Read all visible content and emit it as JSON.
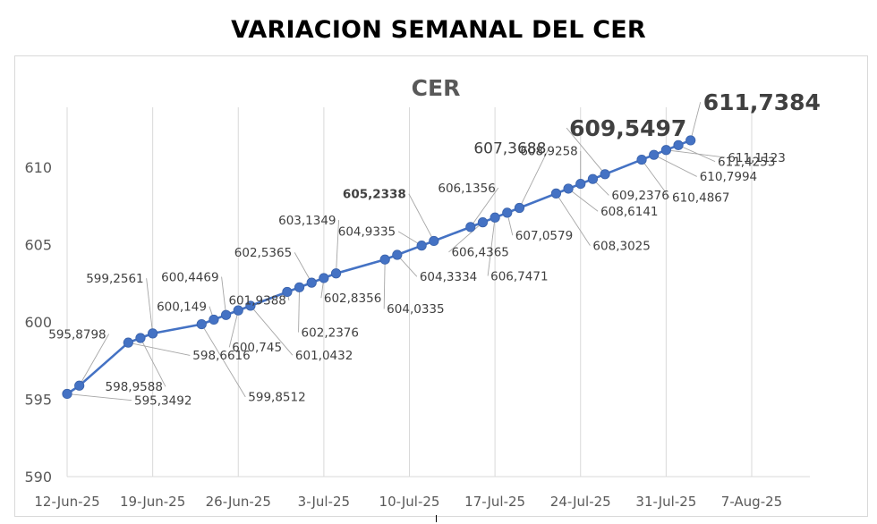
{
  "title": "VARIACION SEMANAL DEL CER",
  "chart_data": {
    "type": "line",
    "title": "CER",
    "xlabel": "",
    "ylabel": "",
    "ylim": [
      590,
      613
    ],
    "yticks": [
      590,
      595,
      600,
      605,
      610
    ],
    "xticks": [
      "12-Jun-25",
      "19-Jun-25",
      "26-Jun-25",
      "3-Jul-25",
      "10-Jul-25",
      "17-Jul-25",
      "24-Jul-25",
      "31-Jul-25",
      "7-Aug-25"
    ],
    "grid": "vertical",
    "series_color": "#4472c4",
    "points": [
      {
        "x": "12-Jun-25",
        "y": 595.3492,
        "label": "595,3492"
      },
      {
        "x": "13-Jun-25",
        "y": 595.8798,
        "label": "595,8798"
      },
      {
        "x": "17-Jun-25",
        "y": 598.6616,
        "label": "598,6616"
      },
      {
        "x": "18-Jun-25",
        "y": 598.9588,
        "label": "598,9588"
      },
      {
        "x": "19-Jun-25",
        "y": 599.2561,
        "label": "599,2561"
      },
      {
        "x": "23-Jun-25",
        "y": 599.8512,
        "label": "599,8512"
      },
      {
        "x": "24-Jun-25",
        "y": 600.149,
        "label": "600,149"
      },
      {
        "x": "25-Jun-25",
        "y": 600.4469,
        "label": "600,4469"
      },
      {
        "x": "26-Jun-25",
        "y": 600.745,
        "label": "600,745"
      },
      {
        "x": "27-Jun-25",
        "y": 601.0432,
        "label": "601,0432"
      },
      {
        "x": "30-Jun-25",
        "y": 601.9388,
        "label": "601,9388"
      },
      {
        "x": "1-Jul-25",
        "y": 602.2376,
        "label": "602,2376"
      },
      {
        "x": "2-Jul-25",
        "y": 602.5365,
        "label": "602,5365"
      },
      {
        "x": "3-Jul-25",
        "y": 602.8356,
        "label": "602,8356"
      },
      {
        "x": "4-Jul-25",
        "y": 603.1349,
        "label": "603,1349"
      },
      {
        "x": "8-Jul-25",
        "y": 604.0335,
        "label": "604,0335"
      },
      {
        "x": "9-Jul-25",
        "y": 604.3334,
        "label": "604,3334"
      },
      {
        "x": "11-Jul-25",
        "y": 604.9335,
        "label": "604,9335"
      },
      {
        "x": "12-Jul-25",
        "y": 605.2338,
        "label": "605,2338",
        "bold": true
      },
      {
        "x": "15-Jul-25",
        "y": 606.1356,
        "label": "606,1356"
      },
      {
        "x": "16-Jul-25",
        "y": 606.4365,
        "label": "606,4365"
      },
      {
        "x": "17-Jul-25",
        "y": 606.7471,
        "label": "606,7471"
      },
      {
        "x": "18-Jul-25",
        "y": 607.0579,
        "label": "607,0579"
      },
      {
        "x": "19-Jul-25",
        "y": 607.3688,
        "label": "607,3688",
        "highlight": "medium"
      },
      {
        "x": "22-Jul-25",
        "y": 608.3025,
        "label": "608,3025"
      },
      {
        "x": "23-Jul-25",
        "y": 608.6141,
        "label": "608,6141"
      },
      {
        "x": "24-Jul-25",
        "y": 608.9258,
        "label": "608,9258"
      },
      {
        "x": "25-Jul-25",
        "y": 609.2376,
        "label": "609,2376"
      },
      {
        "x": "26-Jul-25",
        "y": 609.5497,
        "label": "609,5497",
        "highlight": "large"
      },
      {
        "x": "29-Jul-25",
        "y": 610.4867,
        "label": "610,4867"
      },
      {
        "x": "30-Jul-25",
        "y": 610.7994,
        "label": "610,7994"
      },
      {
        "x": "31-Jul-25",
        "y": 611.1123,
        "label": "611,1123"
      },
      {
        "x": "1-Aug-25",
        "y": 611.4253,
        "label": "611,4253"
      },
      {
        "x": "2-Aug-25",
        "y": 611.7384,
        "label": "611,7384",
        "highlight": "large"
      }
    ]
  }
}
